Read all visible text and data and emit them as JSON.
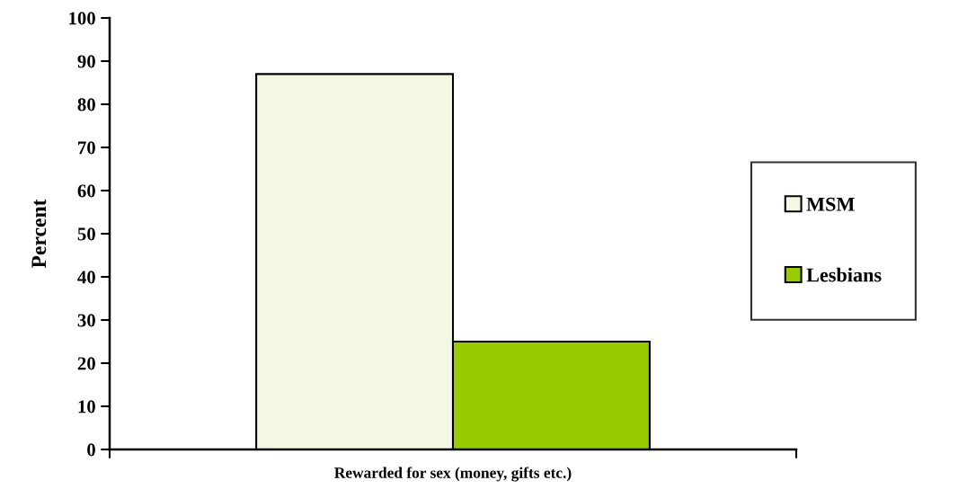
{
  "chart_data": {
    "type": "bar",
    "ylabel": "Percent",
    "categories": [
      "Rewarded for sex (money, gifts etc.)"
    ],
    "series": [
      {
        "name": "MSM",
        "color": "#f2f8e1",
        "values": [
          87
        ]
      },
      {
        "name": "Lesbians",
        "color": "#99cc00",
        "values": [
          25
        ]
      }
    ],
    "ylim": [
      0,
      100
    ],
    "yticks": [
      0,
      10,
      20,
      30,
      40,
      50,
      60,
      70,
      80,
      90,
      100
    ],
    "legend": "right"
  }
}
